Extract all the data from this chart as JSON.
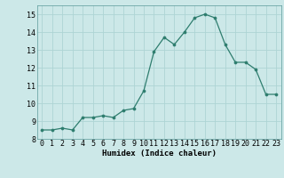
{
  "x": [
    0,
    1,
    2,
    3,
    4,
    5,
    6,
    7,
    8,
    9,
    10,
    11,
    12,
    13,
    14,
    15,
    16,
    17,
    18,
    19,
    20,
    21,
    22,
    23
  ],
  "y": [
    8.5,
    8.5,
    8.6,
    8.5,
    9.2,
    9.2,
    9.3,
    9.2,
    9.6,
    9.7,
    10.7,
    12.9,
    13.7,
    13.3,
    14.0,
    14.8,
    15.0,
    14.8,
    13.3,
    12.3,
    12.3,
    11.9,
    10.5,
    10.5
  ],
  "line_color": "#2e7d6e",
  "marker_color": "#2e7d6e",
  "bg_color": "#cce8e8",
  "grid_color": "#aed4d4",
  "xlabel": "Humidex (Indice chaleur)",
  "ylim": [
    8,
    15.5
  ],
  "xlim": [
    -0.5,
    23.5
  ],
  "yticks": [
    8,
    9,
    10,
    11,
    12,
    13,
    14,
    15
  ],
  "xticks": [
    0,
    1,
    2,
    3,
    4,
    5,
    6,
    7,
    8,
    9,
    10,
    11,
    12,
    13,
    14,
    15,
    16,
    17,
    18,
    19,
    20,
    21,
    22,
    23
  ],
  "label_fontsize": 6.5,
  "tick_fontsize": 6.0
}
